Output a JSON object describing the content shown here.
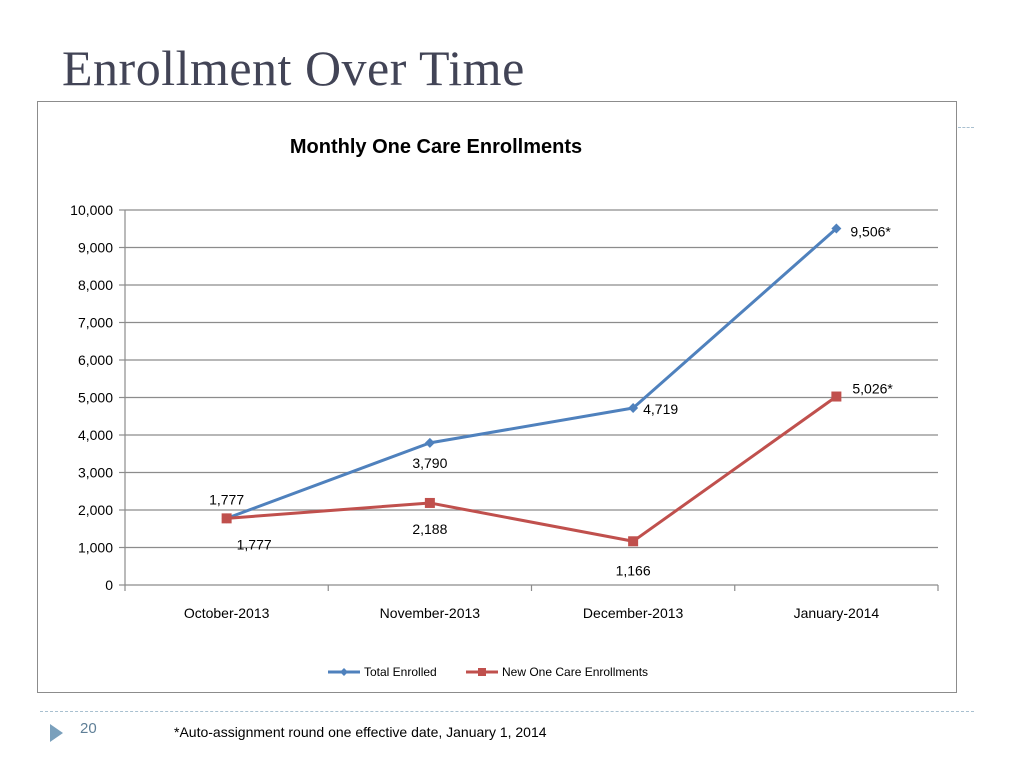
{
  "slide": {
    "title": "Enrollment Over Time",
    "page_number": "20",
    "footnote": "*Auto-assignment round one effective date, January 1, 2014"
  },
  "colors": {
    "title": "#424456",
    "total_series": "#4f81bd",
    "new_series": "#c0504d",
    "gridline": "#8c8c8c",
    "accent": "#7aa0bc"
  },
  "chart_data": {
    "type": "line",
    "title": "Monthly One Care Enrollments",
    "xlabel": "",
    "ylabel": "",
    "categories": [
      "October-2013",
      "November-2013",
      "December-2013",
      "January-2014"
    ],
    "ylim": [
      0,
      10000
    ],
    "yticks": [
      0,
      1000,
      2000,
      3000,
      4000,
      5000,
      6000,
      7000,
      8000,
      9000,
      10000
    ],
    "ytick_labels": [
      "0",
      "1,000",
      "2,000",
      "3,000",
      "4,000",
      "5,000",
      "6,000",
      "7,000",
      "8,000",
      "9,000",
      "10,000"
    ],
    "grid": true,
    "legend_position": "bottom",
    "series": [
      {
        "name": "Total Enrolled",
        "marker": "diamond",
        "color": "#4f81bd",
        "values": [
          1777,
          3790,
          4719,
          9506
        ],
        "data_labels": [
          "1,777",
          "3,790",
          "4,719",
          "9,506*"
        ]
      },
      {
        "name": "New One Care Enrollments",
        "marker": "square",
        "color": "#c0504d",
        "values": [
          1777,
          2188,
          1166,
          5026
        ],
        "data_labels": [
          "1,777",
          "2,188",
          "1,166",
          "5,026*"
        ]
      }
    ]
  }
}
